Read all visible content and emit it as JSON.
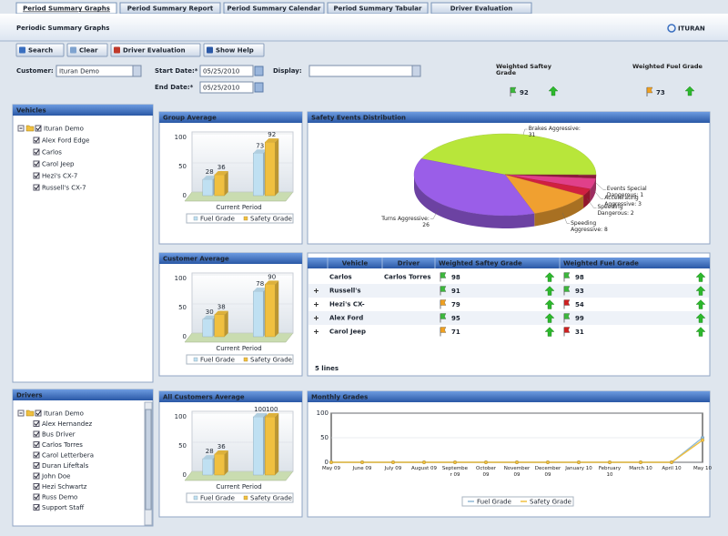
{
  "tabs": [
    "Period Summary Graphs",
    "Period Summary Report",
    "Period Summary Calendar",
    "Period Summary Tabular",
    "Driver Evaluation"
  ],
  "header": {
    "title": "Periodic Summary Graphs",
    "logo": "ITURAN"
  },
  "toolbar": [
    "Search",
    "Clear",
    "Driver Evaluation",
    "Show Help"
  ],
  "filters": {
    "customer_label": "Customer:",
    "customer": "Ituran Demo",
    "start_label": "Start Date:*",
    "start": "05/25/2010",
    "end_label": "End Date:*",
    "end": "05/25/2010",
    "display_label": "Display:"
  },
  "summary": [
    {
      "label": "Weighted Saftey Grade",
      "value": 92
    },
    {
      "label": "Weighted Fuel Grade",
      "value": 73
    }
  ],
  "vehicles": {
    "title": "Vehicles",
    "root": "Ituran Demo",
    "items": [
      "Alex Ford Edge",
      "Carlos",
      "Carol Jeep",
      "Hezi's CX-7",
      "Russell's CX-7"
    ]
  },
  "drivers": {
    "title": "Drivers",
    "root": "Ituran Demo",
    "items": [
      "Alex Hernandez",
      "Bus Driver",
      "Carlos Torres",
      "Carol Letterbera",
      "Duran Lifeftals",
      "John Doe",
      "Hezi Schwartz",
      "Russ Demo",
      "Support Staff"
    ]
  },
  "chart_data": [
    {
      "type": "bar",
      "title": "Group Average",
      "categories": [
        null,
        null
      ],
      "x_label": "Current Period",
      "ylim": [
        0,
        100
      ],
      "yticks": [
        0,
        50,
        100
      ],
      "series": [
        {
          "name": "Fuel Grade",
          "color": "#bfe0f2",
          "values": [
            28,
            73
          ]
        },
        {
          "name": "Safety Grade",
          "color": "#f0c040",
          "values": [
            36,
            92
          ]
        }
      ]
    },
    {
      "type": "bar",
      "title": "Customer Average",
      "categories": [
        null,
        null
      ],
      "x_label": "Current Period",
      "ylim": [
        0,
        100
      ],
      "yticks": [
        0,
        50,
        100
      ],
      "series": [
        {
          "name": "Fuel Grade",
          "color": "#bfe0f2",
          "values": [
            30,
            78
          ]
        },
        {
          "name": "Safety Grade",
          "color": "#f0c040",
          "values": [
            38,
            90
          ]
        }
      ]
    },
    {
      "type": "bar",
      "title": "All Customers Average",
      "categories": [
        null,
        null
      ],
      "x_label": "Current Period",
      "ylim": [
        0,
        100
      ],
      "yticks": [
        0,
        50,
        100
      ],
      "series": [
        {
          "name": "Fuel Grade",
          "color": "#bfe0f2",
          "values": [
            28,
            100
          ]
        },
        {
          "name": "Safety Grade",
          "color": "#f0c040",
          "values": [
            36,
            100
          ]
        }
      ]
    },
    {
      "type": "pie",
      "title": "Safety Events Distribution",
      "values": [
        31,
        1,
        3,
        2,
        8,
        26
      ],
      "value_labels": [
        "Brakes Aggressive: 31",
        "Events Special Dangerous: 1",
        "Accelerating Aggressive: 3",
        "Speeding Dangerous: 2",
        "Speeding Aggressive: 8",
        "Turns Aggressive: 26"
      ],
      "colors": [
        "#b8e63a",
        "#8b1a3a",
        "#e0408a",
        "#d02040",
        "#f0a030",
        "#9a5ee8"
      ]
    },
    {
      "type": "line",
      "title": "Monthly Grades",
      "categories": [
        "May 09",
        "June 09",
        "July 09",
        "August 09",
        "September 09",
        "October 09",
        "November 09",
        "December 09",
        "January 10",
        "February 10",
        "March 10",
        "April 10",
        "May 10"
      ],
      "ylim": [
        0,
        100
      ],
      "yticks": [
        0,
        50,
        100
      ],
      "series": [
        {
          "name": "Fuel Grade",
          "color": "#8fb9d6",
          "values": [
            0,
            0,
            0,
            0,
            0,
            0,
            0,
            0,
            0,
            0,
            0,
            0,
            50
          ]
        },
        {
          "name": "Safety Grade",
          "color": "#f0c040",
          "values": [
            0,
            0,
            0,
            0,
            0,
            0,
            0,
            0,
            0,
            0,
            0,
            0,
            45
          ]
        }
      ]
    }
  ],
  "table": {
    "columns": [
      "Vehicle",
      "Driver",
      "Weighted Saftey Grade",
      "Weighted Fuel Grade"
    ],
    "rows": [
      {
        "vehicle": "Carlos",
        "driver": "Carlos Torres",
        "safety": 98,
        "fuel": 98
      },
      {
        "vehicle": "Russell's",
        "safety": 91,
        "fuel": 93
      },
      {
        "vehicle": "Hezi's CX-",
        "safety": 79,
        "fuel": 54
      },
      {
        "vehicle": "Alex Ford",
        "safety": 95,
        "fuel": 99
      },
      {
        "vehicle": "Carol Jeep",
        "safety": 71,
        "fuel": 31
      }
    ],
    "footer": "5 lines"
  }
}
